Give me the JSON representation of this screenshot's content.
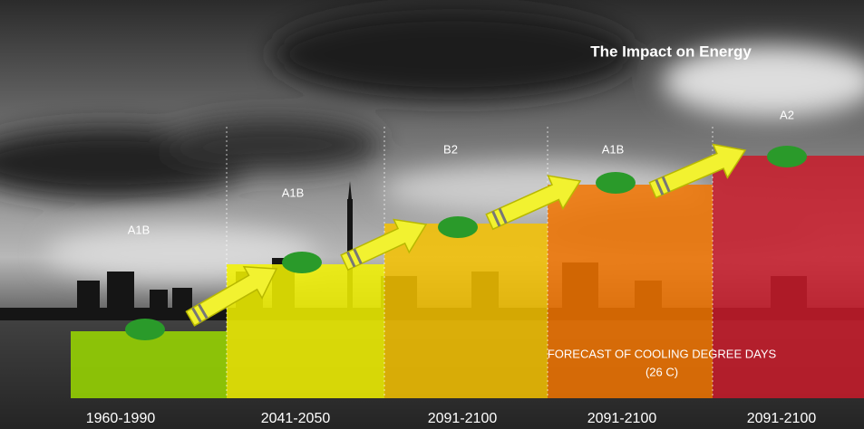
{
  "title": "The Impact on Energy",
  "note": [
    "FORECAST OF COOLING DEGREE DAYS",
    "(26 C)"
  ],
  "steps": [
    {
      "period": "1960-1990",
      "scenario": "A1B",
      "color": "#9bdb00"
    },
    {
      "period": "2041-2050",
      "scenario": "A1B",
      "color": "#f4f400"
    },
    {
      "period": "2091-2100",
      "scenario": "B2",
      "color": "#f6c200"
    },
    {
      "period": "2091-2100",
      "scenario": "A1B",
      "color": "#f27400"
    },
    {
      "period": "2091-2100",
      "scenario": "A2",
      "color": "#c91b2a"
    }
  ]
}
